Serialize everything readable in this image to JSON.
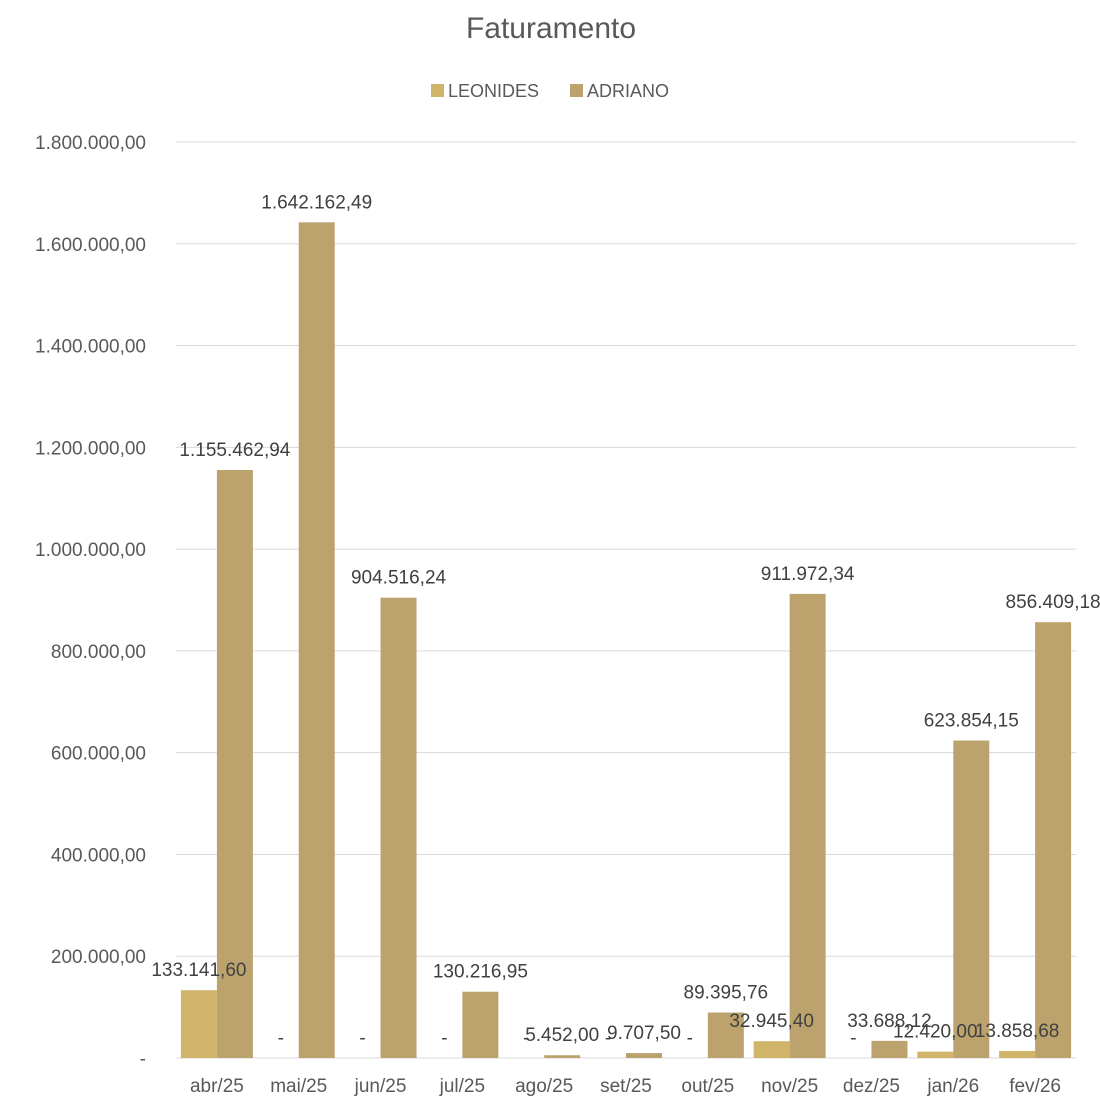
{
  "chart_data": {
    "type": "bar",
    "title": "Faturamento",
    "xlabel": "",
    "ylabel": "",
    "ylim": [
      0,
      1800000
    ],
    "ytick_values": [
      0,
      200000,
      400000,
      600000,
      800000,
      1000000,
      1200000,
      1400000,
      1600000,
      1800000
    ],
    "ytick_labels": [
      "-",
      "200.000,00",
      "400.000,00",
      "600.000,00",
      "800.000,00",
      "1.000.000,00",
      "1.200.000,00",
      "1.400.000,00",
      "1.600.000,00",
      "1.800.000,00"
    ],
    "grid": true,
    "legend_position": "top",
    "categories": [
      "abr/25",
      "mai/25",
      "jun/25",
      "jul/25",
      "ago/25",
      "set/25",
      "out/25",
      "nov/25",
      "dez/25",
      "jan/26",
      "fev/26"
    ],
    "series": [
      {
        "name": "LEONIDES",
        "color": "#CFB46A",
        "values": [
          133141.6,
          0,
          0,
          0,
          0,
          0,
          0,
          32945.4,
          0,
          12420.0,
          13858.68
        ],
        "labels": [
          "133.141,60",
          "-",
          "-",
          "-",
          "-",
          "-",
          "-",
          "32.945,40",
          "-",
          "12.420,00",
          "13.858,68"
        ]
      },
      {
        "name": "ADRIANO",
        "color": "#BCA36E",
        "values": [
          1155462.94,
          1642162.49,
          904516.24,
          130216.95,
          5452.0,
          9707.5,
          89395.76,
          911972.34,
          33688.12,
          623854.15,
          856409.18
        ],
        "labels": [
          "1.155.462,94",
          "1.642.162,49",
          "904.516,24",
          "130.216,95",
          "5.452,00",
          "9.707,50",
          "89.395,76",
          "911.972,34",
          "33.688,12",
          "623.854,15",
          "856.409,18"
        ]
      }
    ]
  }
}
